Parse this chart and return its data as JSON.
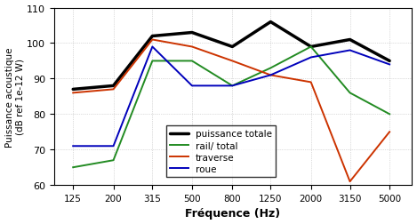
{
  "x_labels": [
    "125",
    "200",
    "315",
    "500",
    "800",
    "1250",
    "2000",
    "3150",
    "5000"
  ],
  "x_values": [
    125,
    200,
    315,
    500,
    800,
    1250,
    2000,
    3150,
    5000
  ],
  "puissance_totale": [
    87,
    88,
    102,
    103,
    99,
    106,
    99,
    101,
    95
  ],
  "rail_total": [
    65,
    67,
    95,
    95,
    88,
    93,
    99,
    86,
    80
  ],
  "traverse": [
    86,
    87,
    101,
    99,
    95,
    91,
    89,
    61,
    75
  ],
  "roue": [
    71,
    71,
    99,
    88,
    88,
    91,
    96,
    98,
    94
  ],
  "colors": {
    "puissance_totale": "#000000",
    "rail_total": "#228B22",
    "traverse": "#CC3300",
    "roue": "#0000BB"
  },
  "linewidths": {
    "puissance_totale": 2.5,
    "rail_total": 1.4,
    "traverse": 1.4,
    "roue": 1.4
  },
  "ylabel": "Puissance acoustique\n(dB ref 1e-12 W)",
  "xlabel": "Fréquence (Hz)",
  "ylim": [
    60,
    110
  ],
  "yticks": [
    60,
    70,
    80,
    90,
    100,
    110
  ],
  "legend_labels": [
    "puissance totale",
    "rail/ total",
    "traverse",
    "roue"
  ],
  "background_color": "#ffffff",
  "grid_color": "#bbbbbb"
}
